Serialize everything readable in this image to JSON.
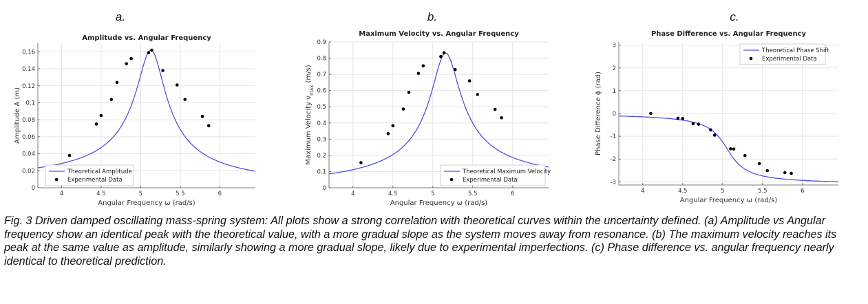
{
  "caption": "Fig. 3 Driven damped oscillating mass-spring system: All plots show a strong correlation with theoretical curves within the uncertainty defined. (a) Amplitude vs Angular frequency show an identical peak with the theoretical value, with a more gradual slope as the system moves away from resonance. (b) The maximum velocity reaches its peak at the same value as amplitude, similarly showing a more gradual slope, likely due to experimental imperfections. (c) Phase difference vs. angular frequency nearly identical to theoretical prediction.",
  "colors": {
    "theory": "#5050e8",
    "data": "#000000",
    "grid": "#e4e4e4",
    "axis": "#555555"
  },
  "chart_data": [
    {
      "panel": "a.",
      "type": "line",
      "title": "Amplitude vs. Angular Frequency",
      "xlabel": "Angular Frequency ω (rad/s)",
      "ylabel": "Amplitude A (m)",
      "xlim": [
        3.7,
        6.45
      ],
      "ylim": [
        0,
        0.17
      ],
      "xticks": [
        4,
        4.5,
        5,
        5.5,
        6
      ],
      "yticks": [
        0,
        0.02,
        0.04,
        0.06,
        0.08,
        0.1,
        0.12,
        0.14,
        0.16
      ],
      "grid": true,
      "legend_position": "bottom-left",
      "theory": {
        "name": "Theoretical Amplitude",
        "model": "amplitude",
        "omega0": 5.135,
        "gamma": 0.36,
        "peak": 0.162
      },
      "series": [
        {
          "name": "Theoretical Amplitude",
          "kind": "line"
        },
        {
          "name": "Experimental Data",
          "kind": "scatter",
          "x": [
            4.1,
            4.44,
            4.5,
            4.63,
            4.7,
            4.82,
            4.88,
            5.1,
            5.14,
            5.28,
            5.46,
            5.56,
            5.78,
            5.86
          ],
          "y": [
            0.038,
            0.075,
            0.085,
            0.104,
            0.124,
            0.146,
            0.152,
            0.159,
            0.162,
            0.138,
            0.121,
            0.104,
            0.084,
            0.073
          ]
        }
      ]
    },
    {
      "panel": "b.",
      "type": "line",
      "title": "Maximum Velocity vs. Angular Frequency",
      "xlabel": "Angular Frequency ω (rad/s)",
      "ylabel_main": "Maximum Velocity v",
      "ylabel_sub": "max",
      "ylabel_unit": " (m/s)",
      "xlim": [
        3.7,
        6.45
      ],
      "ylim": [
        0,
        0.9
      ],
      "xticks": [
        4,
        4.5,
        5,
        5.5,
        6
      ],
      "yticks": [
        0,
        0.1,
        0.2,
        0.3,
        0.4,
        0.5,
        0.6,
        0.7,
        0.8,
        0.9
      ],
      "grid": true,
      "legend_position": "bottom-right",
      "theory": {
        "name": "Theoretical Maximum Velocity",
        "model": "velocity",
        "omega0": 5.16,
        "gamma": 0.36,
        "peak": 0.832
      },
      "series": [
        {
          "name": "Theoretical Maximum Velocity",
          "kind": "line"
        },
        {
          "name": "Experimental Data",
          "kind": "scatter",
          "x": [
            4.1,
            4.44,
            4.5,
            4.63,
            4.7,
            4.82,
            4.88,
            5.1,
            5.14,
            5.28,
            5.46,
            5.56,
            5.78,
            5.86
          ],
          "y": [
            0.155,
            0.334,
            0.383,
            0.486,
            0.589,
            0.706,
            0.753,
            0.81,
            0.833,
            0.729,
            0.66,
            0.576,
            0.484,
            0.432
          ]
        }
      ]
    },
    {
      "panel": "c.",
      "type": "line",
      "title": "Phase Difference vs. Angular Frequency",
      "xlabel": "Angular Frequency ω (rad/s)",
      "ylabel": "Phase Difference ϕ (rad)",
      "xlim": [
        3.7,
        6.45
      ],
      "ylim": [
        -3.14,
        3.14
      ],
      "xticks": [
        4,
        4.5,
        5,
        5.5,
        6
      ],
      "yticks": [
        -3,
        -2,
        -1,
        0,
        1,
        2,
        3
      ],
      "grid": true,
      "legend_position": "top-right",
      "theory": {
        "name": "Theoretical Phase Shift",
        "model": "phase",
        "omega0": 5.06,
        "gamma": 0.36
      },
      "series": [
        {
          "name": "Theoretical Phase Shift",
          "kind": "line"
        },
        {
          "name": "Experimental Data",
          "kind": "scatter",
          "x": [
            4.1,
            4.44,
            4.5,
            4.63,
            4.7,
            4.85,
            4.9,
            5.1,
            5.14,
            5.28,
            5.46,
            5.56,
            5.78,
            5.86
          ],
          "y": [
            0.0,
            -0.21,
            -0.22,
            -0.45,
            -0.47,
            -0.72,
            -0.95,
            -1.55,
            -1.56,
            -1.85,
            -2.2,
            -2.51,
            -2.6,
            -2.63
          ]
        }
      ]
    }
  ]
}
